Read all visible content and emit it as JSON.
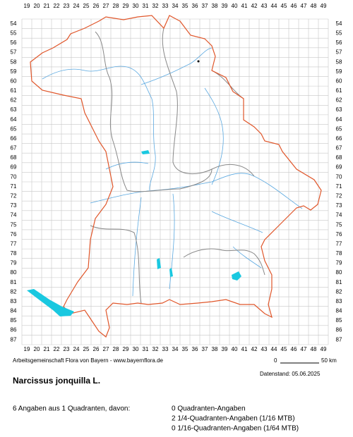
{
  "grid": {
    "columns": [
      19,
      20,
      21,
      22,
      23,
      24,
      25,
      26,
      27,
      28,
      29,
      30,
      31,
      32,
      33,
      34,
      35,
      36,
      37,
      38,
      39,
      40,
      41,
      42,
      43,
      44,
      45,
      46,
      47,
      48,
      49
    ],
    "rows": [
      54,
      55,
      56,
      57,
      58,
      59,
      60,
      61,
      62,
      63,
      64,
      65,
      66,
      67,
      68,
      69,
      70,
      71,
      72,
      73,
      74,
      75,
      76,
      77,
      78,
      79,
      80,
      81,
      82,
      83,
      84,
      85,
      86,
      87
    ]
  },
  "credit": "Arbeitsgemeinschaft Flora von Bayern - www.bayernflora.de",
  "scale": {
    "start": "0",
    "end": "50 km"
  },
  "date": "Datenstand: 05.06.2025",
  "title": "Narcissus jonquilla L.",
  "summary": "6 Angaben aus 1 Quadranten, davon:",
  "details": [
    "0 Quadranten-Angaben",
    "2 1/4-Quadranten-Angaben (1/16 MTB)",
    "0 1/16-Quadranten-Angaben (1/64 MTB)"
  ]
}
